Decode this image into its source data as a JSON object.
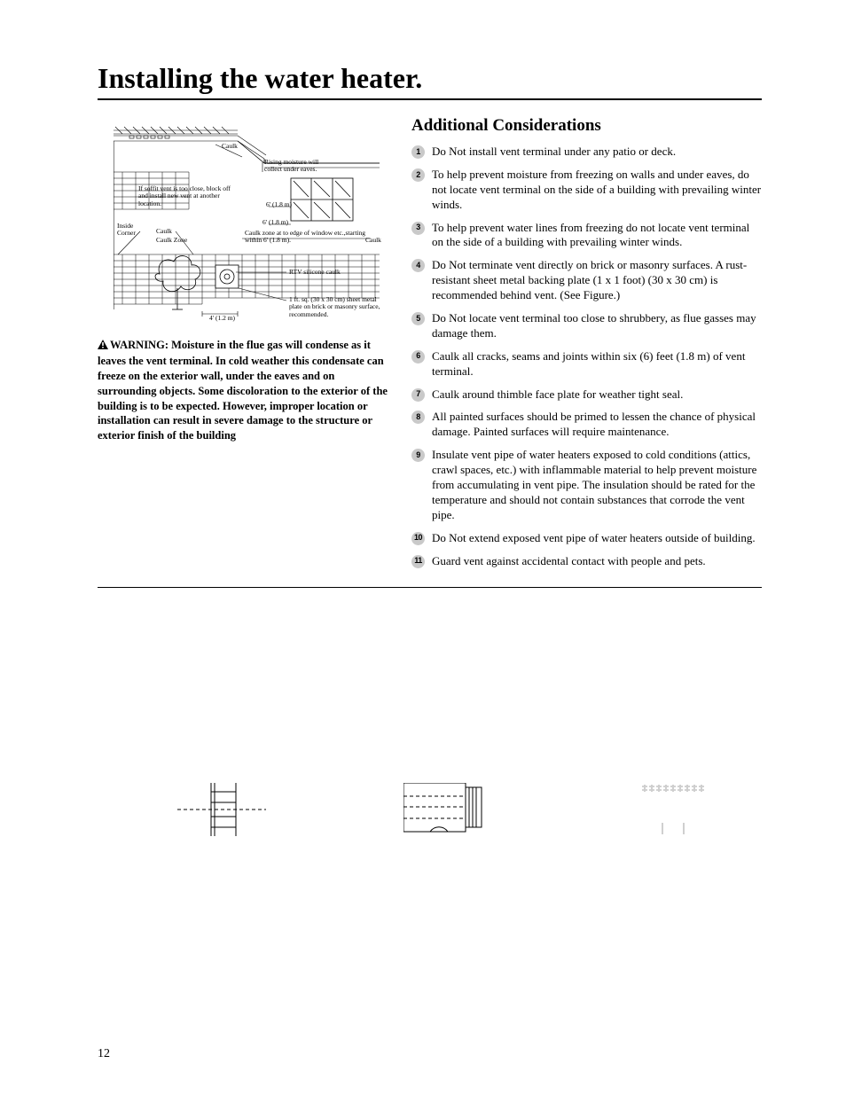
{
  "page_title": "Installing the water heater.",
  "page_number": "12",
  "left_column": {
    "figure": {
      "labels": {
        "caulk_top": "Caulk",
        "rising_moisture": "Rising moisture will collect under eaves.",
        "soffit_note": "If soffit vent is too close, block off and install new vent at another location.",
        "inside_corner": "Inside Corner",
        "caulk_mid": "Caulk",
        "caulk_zone": "Caulk Zone",
        "dim6a": "6' (1.8 m)",
        "dim6b": "6' (1.8 m)",
        "caulk_zone2": "Caulk zone at to edge of window etc.,starting within 6' (1.8 m).",
        "caulk_right": "Caulk",
        "rtv": "RTV silicone caulk",
        "plate_note": "1 ft. sq. (30 x 30 cm) sheet metal plate on brick or masonry surface, recommended.",
        "dim4": "4' (1.2 m)"
      }
    },
    "warning": {
      "prefix": "WARNING",
      "text": ": Moisture in the flue gas will condense as it leaves the vent terminal. In cold weather this condensate can freeze on the exterior wall, under the eaves and on surrounding objects. Some discoloration to the exterior of the building is to be expected. However, improper location or installation can result in severe damage to the structure or exterior finish of the building"
    }
  },
  "right_column": {
    "heading": "Additional Considerations",
    "items": [
      "Do Not install vent terminal under any patio or deck.",
      "To help prevent moisture from freezing on walls and under eaves, do not locate vent terminal on the side of a building with prevailing winter winds.",
      "To help prevent water lines from freezing do not locate vent terminal on the side of a building with prevailing winter winds.",
      "Do Not terminate vent directly on brick or masonry surfaces. A rust-resistant sheet metal backing plate (1 x 1 foot) (30 x 30 cm) is recommended behind vent. (See Figure.)",
      "Do Not locate vent terminal too close to shrubbery, as flue gasses may damage them.",
      "Caulk all cracks, seams and joints within six (6) feet (1.8 m) of vent terminal.",
      "Caulk around thimble face plate for weather tight seal.",
      "All painted surfaces should be primed to lessen the chance of physical damage. Painted surfaces will require maintenance.",
      "Insulate vent pipe of water heaters exposed to cold conditions (attics, crawl spaces, etc.) with inflammable material to help prevent moisture from accumulating in vent pipe.  The insulation should be rated for the temperature and should not contain substances that corrode the vent pipe.",
      "Do Not extend exposed vent pipe of water heaters outside of building.",
      "Guard vent against accidental contact with people and pets."
    ]
  }
}
